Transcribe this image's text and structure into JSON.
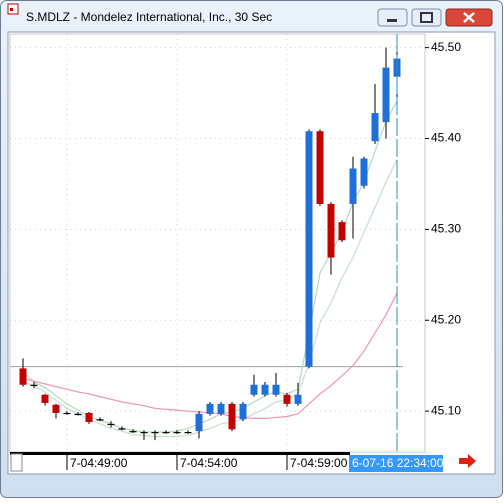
{
  "window": {
    "title": "S.MDLZ - Mondelez International, Inc., 30 Sec"
  },
  "chart_data": {
    "type": "candlestick",
    "categories": [
      null,
      null,
      null,
      null,
      "7-04:49:00",
      null,
      null,
      null,
      null,
      null,
      null,
      null,
      null,
      null,
      "7-04:54:00",
      null,
      null,
      null,
      null,
      null,
      null,
      null,
      null,
      null,
      "7-04:59:00",
      null,
      null,
      null,
      null,
      null,
      null,
      null,
      null,
      null,
      null
    ],
    "open": [
      45.147,
      45.129,
      45.118,
      45.107,
      45.098,
      45.097,
      45.098,
      45.091,
      45.086,
      45.081,
      45.078,
      45.077,
      45.077,
      45.077,
      45.077,
      45.077,
      45.078,
      45.097,
      45.097,
      45.108,
      45.091,
      45.118,
      45.118,
      45.118,
      45.118,
      45.108,
      45.149,
      45.408,
      45.328,
      45.308,
      45.328,
      45.348,
      45.397,
      45.418,
      45.468
    ],
    "high": [
      45.158,
      45.132,
      45.119,
      45.108,
      45.1,
      45.099,
      45.099,
      45.093,
      45.089,
      45.083,
      45.08,
      45.079,
      45.079,
      45.079,
      45.079,
      45.079,
      45.1,
      45.11,
      45.11,
      45.11,
      45.11,
      45.14,
      45.132,
      45.142,
      45.12,
      45.131,
      45.41,
      45.41,
      45.33,
      45.31,
      45.38,
      45.38,
      45.46,
      45.5,
      45.5
    ],
    "low": [
      45.127,
      45.125,
      45.106,
      45.092,
      45.096,
      45.095,
      45.086,
      45.089,
      45.082,
      45.079,
      45.076,
      45.068,
      45.068,
      45.075,
      45.075,
      45.075,
      45.07,
      45.095,
      45.095,
      45.078,
      45.089,
      45.116,
      45.116,
      45.116,
      45.105,
      45.106,
      45.147,
      45.326,
      45.25,
      45.286,
      45.29,
      45.345,
      45.394,
      45.4,
      45.44
    ],
    "close": [
      45.129,
      45.129,
      45.109,
      45.098,
      45.098,
      45.097,
      45.088,
      45.091,
      45.086,
      45.081,
      45.078,
      45.077,
      45.077,
      45.077,
      45.077,
      45.077,
      45.097,
      45.108,
      45.108,
      45.08,
      45.108,
      45.129,
      45.129,
      45.129,
      45.108,
      45.118,
      45.408,
      45.328,
      45.269,
      45.288,
      45.367,
      45.378,
      45.428,
      45.478,
      45.488
    ],
    "up_color": "#1f6fd8",
    "down_color": "#c40000",
    "moving_averages": [
      {
        "color": "#b9dcbf",
        "values": [
          45.143,
          45.132,
          45.126,
          45.117,
          45.108,
          45.101,
          45.094,
          45.09,
          45.086,
          45.081,
          45.079,
          45.077,
          45.077,
          45.077,
          45.078,
          45.081,
          45.086,
          45.091,
          45.097,
          45.099,
          45.103,
          45.11,
          45.117,
          45.121,
          45.119,
          45.124,
          45.186,
          45.252,
          45.274,
          45.297,
          45.33,
          45.352,
          45.386,
          45.419,
          45.441
        ]
      },
      {
        "color": "#c9e3cc",
        "values": [
          45.132,
          45.128,
          45.121,
          45.112,
          45.103,
          45.097,
          45.091,
          45.086,
          45.081,
          45.078,
          45.074,
          45.073,
          45.072,
          45.072,
          45.072,
          45.073,
          45.077,
          45.081,
          45.086,
          45.088,
          45.091,
          45.097,
          45.103,
          45.11,
          45.113,
          45.119,
          45.152,
          45.197,
          45.219,
          45.247,
          45.269,
          45.297,
          45.324,
          45.352,
          45.377
        ]
      },
      {
        "color": "#f19ac0",
        "values": [
          45.136,
          45.133,
          45.13,
          45.127,
          45.124,
          45.121,
          45.119,
          45.116,
          45.113,
          45.11,
          45.108,
          45.106,
          45.103,
          45.102,
          45.101,
          45.1,
          45.099,
          45.098,
          45.097,
          45.094,
          45.093,
          45.092,
          45.092,
          45.093,
          45.094,
          45.097,
          45.108,
          45.119,
          45.128,
          45.139,
          45.15,
          45.166,
          45.186,
          45.206,
          45.23
        ]
      }
    ],
    "reference_line": 45.149,
    "cursor_index": 34,
    "cursor_label": "6-07-16 22:34:00",
    "ylim": [
      45.055,
      45.515
    ],
    "yticks": [
      {
        "value": 45.1,
        "label": "45.10"
      },
      {
        "value": 45.2,
        "label": "45.20"
      },
      {
        "value": 45.3,
        "label": "45.30"
      },
      {
        "value": 45.4,
        "label": "45.40"
      },
      {
        "value": 45.5,
        "label": "45.50"
      }
    ],
    "grid": true
  }
}
